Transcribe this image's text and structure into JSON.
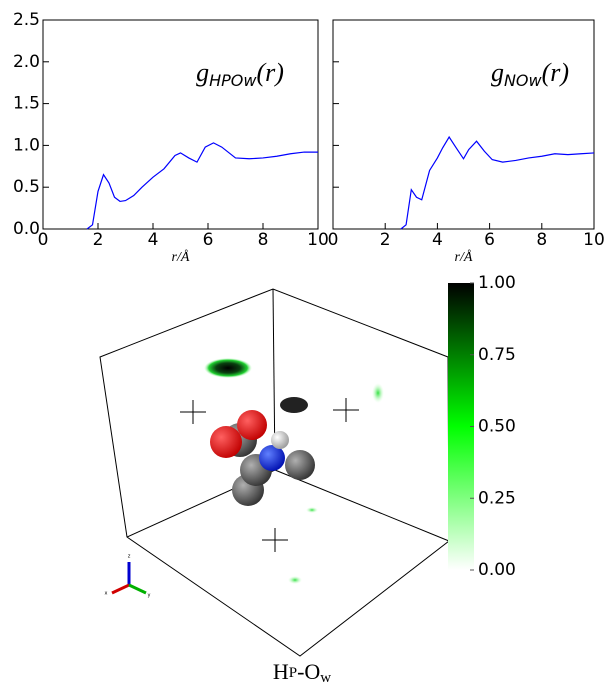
{
  "chart_data": [
    {
      "type": "line",
      "annotation": {
        "symbol": "g",
        "subscript": "HPOw",
        "argument": "(r)"
      },
      "x_label": "r/Å",
      "xlim": [
        0,
        10
      ],
      "xticks": [
        0,
        2,
        4,
        6,
        8,
        10
      ],
      "ylim": [
        0,
        2.5
      ],
      "yticks": [
        {
          "value": 0,
          "label": "0.0"
        },
        0.5,
        {
          "value": 1,
          "label": "1.0"
        },
        1.5,
        {
          "value": 2,
          "label": "2.0"
        },
        2.5
      ],
      "ytick_labels": true,
      "x": [
        1.6,
        1.8,
        2.0,
        2.2,
        2.4,
        2.6,
        2.8,
        3.0,
        3.3,
        3.6,
        4.0,
        4.4,
        4.8,
        5.0,
        5.3,
        5.6,
        5.9,
        6.2,
        6.5,
        7.0,
        7.5,
        8.0,
        8.5,
        9.0,
        9.5,
        10
      ],
      "series": [
        {
          "color": "#0000ff",
          "values": [
            0,
            0.05,
            0.45,
            0.65,
            0.55,
            0.38,
            0.33,
            0.34,
            0.4,
            0.5,
            0.62,
            0.72,
            0.88,
            0.91,
            0.85,
            0.8,
            0.98,
            1.03,
            0.98,
            0.85,
            0.84,
            0.85,
            0.87,
            0.9,
            0.92,
            0.92
          ]
        }
      ]
    },
    {
      "type": "line",
      "annotation": {
        "symbol": "g",
        "subscript": "NOw",
        "argument": "(r)"
      },
      "x_label": "r/Å",
      "xlim": [
        0,
        10
      ],
      "xticks": [
        0,
        2,
        4,
        6,
        8,
        10
      ],
      "ylim": [
        0,
        2.5
      ],
      "yticks": [
        0,
        0.5,
        1,
        1.5,
        2,
        2.5
      ],
      "ytick_labels": false,
      "x": [
        2.6,
        2.8,
        3.0,
        3.2,
        3.4,
        3.7,
        4.0,
        4.2,
        4.45,
        4.7,
        5.0,
        5.2,
        5.5,
        5.8,
        6.1,
        6.5,
        7.0,
        7.5,
        8.0,
        8.5,
        9.0,
        9.5,
        10
      ],
      "series": [
        {
          "color": "#0000ff",
          "values": [
            0,
            0.05,
            0.47,
            0.38,
            0.35,
            0.7,
            0.85,
            0.97,
            1.1,
            0.98,
            0.84,
            0.95,
            1.05,
            0.93,
            0.83,
            0.8,
            0.82,
            0.85,
            0.87,
            0.9,
            0.89,
            0.9,
            0.91
          ]
        }
      ]
    },
    {
      "type": "colorbar",
      "ylim": [
        0,
        1
      ],
      "yticks": [
        {
          "value": 0,
          "label": "0.00"
        },
        {
          "value": 0.25,
          "label": "0.25"
        },
        {
          "value": 0.5,
          "label": "0.50"
        },
        {
          "value": 0.75,
          "label": "0.75"
        },
        {
          "value": 1,
          "label": "1.00"
        }
      ],
      "colors": [
        "#ffffff",
        "#00ff00",
        "#000000"
      ]
    }
  ],
  "scene": {
    "axis_labels": [
      "x",
      "y",
      "z"
    ]
  },
  "caption": [
    "H",
    "P",
    "-O",
    "w"
  ]
}
